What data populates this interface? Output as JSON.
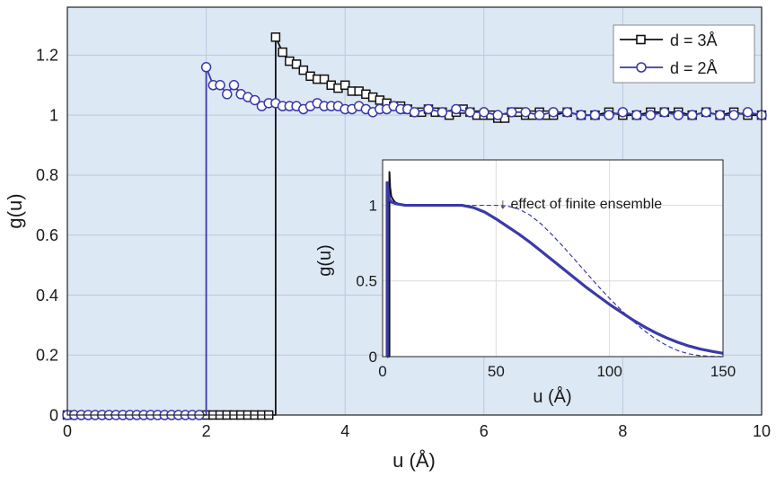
{
  "chart_data": [
    {
      "type": "line",
      "xlabel": "u (Å)",
      "ylabel": "g(u)",
      "xlim": [
        0,
        10
      ],
      "ylim": [
        0,
        1.36
      ],
      "xticks": [
        "0",
        "2",
        "4",
        "6",
        "8",
        "10"
      ],
      "yticks": [
        "0",
        "0.2",
        "0.4",
        "0.6",
        "0.8",
        "1",
        "1.2"
      ],
      "grid": true,
      "legend_position": "top-right",
      "background": "#dde8f5",
      "series": [
        {
          "name": "d = 3Å",
          "color": "#111111",
          "marker": "square",
          "x": [
            0.0,
            2.0,
            2.1,
            2.2,
            2.3,
            2.4,
            2.5,
            2.6,
            2.7,
            2.8,
            2.9,
            3.0,
            3.1,
            3.2,
            3.3,
            3.4,
            3.5,
            3.6,
            3.7,
            3.8,
            3.9,
            4.0,
            4.1,
            4.2,
            4.3,
            4.4,
            4.5,
            4.6,
            4.7,
            4.8,
            4.9,
            5.0,
            5.1,
            5.2,
            5.3,
            5.4,
            5.5,
            5.6,
            5.7,
            5.8,
            5.9,
            6.0,
            6.1,
            6.2,
            6.3,
            6.4,
            6.5,
            6.6,
            6.7,
            6.8,
            6.9,
            7.0,
            7.2,
            7.4,
            7.6,
            7.8,
            8.0,
            8.2,
            8.4,
            8.6,
            8.8,
            9.0,
            9.2,
            9.4,
            9.6,
            9.8,
            10.0
          ],
          "y": [
            0,
            0,
            0,
            0,
            0,
            0,
            0,
            0,
            0,
            0,
            0,
            1.26,
            1.21,
            1.18,
            1.17,
            1.15,
            1.13,
            1.12,
            1.12,
            1.1,
            1.09,
            1.1,
            1.08,
            1.08,
            1.07,
            1.06,
            1.05,
            1.04,
            1.03,
            1.03,
            1.02,
            1.01,
            1.01,
            1.02,
            1.01,
            1.01,
            1.0,
            1.01,
            1.02,
            1.01,
            1.0,
            1.0,
            1.0,
            0.99,
            0.99,
            1.01,
            1.01,
            1.0,
            1.0,
            1.01,
            1.0,
            1.0,
            1.01,
            1.0,
            1.0,
            1.01,
            1.0,
            1.0,
            1.01,
            1.01,
            1.01,
            1.0,
            1.01,
            1.0,
            1.01,
            1.0,
            1.0
          ]
        },
        {
          "name": "d = 2Å",
          "color": "#3a3aa8",
          "marker": "circle",
          "x": [
            0.0,
            0.1,
            0.2,
            0.3,
            0.4,
            0.5,
            0.6,
            0.7,
            0.8,
            0.9,
            1.0,
            1.1,
            1.2,
            1.3,
            1.4,
            1.5,
            1.6,
            1.7,
            1.8,
            1.9,
            2.0,
            2.1,
            2.2,
            2.3,
            2.4,
            2.5,
            2.6,
            2.7,
            2.8,
            2.9,
            3.0,
            3.1,
            3.2,
            3.3,
            3.4,
            3.5,
            3.6,
            3.7,
            3.8,
            3.9,
            4.0,
            4.1,
            4.2,
            4.3,
            4.4,
            4.5,
            4.6,
            4.7,
            4.8,
            4.9,
            5.0,
            5.2,
            5.4,
            5.6,
            5.8,
            6.0,
            6.2,
            6.4,
            6.6,
            6.8,
            7.0,
            7.2,
            7.4,
            7.6,
            7.8,
            8.0,
            8.2,
            8.4,
            8.6,
            8.8,
            9.0,
            9.2,
            9.4,
            9.6,
            9.8,
            10.0
          ],
          "y": [
            0,
            0,
            0,
            0,
            0,
            0,
            0,
            0,
            0,
            0,
            0,
            0,
            0,
            0,
            0,
            0,
            0,
            0,
            0,
            0,
            1.16,
            1.1,
            1.1,
            1.07,
            1.1,
            1.07,
            1.06,
            1.05,
            1.03,
            1.04,
            1.04,
            1.03,
            1.03,
            1.03,
            1.02,
            1.03,
            1.04,
            1.03,
            1.03,
            1.03,
            1.02,
            1.02,
            1.03,
            1.02,
            1.01,
            1.02,
            1.02,
            1.03,
            1.02,
            1.02,
            1.01,
            1.02,
            1.01,
            1.02,
            1.01,
            1.01,
            1.0,
            1.01,
            1.01,
            1.0,
            1.01,
            1.01,
            1.0,
            1.0,
            1.0,
            1.01,
            1.0,
            1.0,
            1.01,
            1.0,
            1.0,
            1.01,
            1.0,
            1.0,
            1.01,
            1.0
          ]
        }
      ]
    },
    {
      "type": "line",
      "xlabel": "u (Å)",
      "ylabel": "g(u)",
      "xlim": [
        0,
        150
      ],
      "ylim": [
        0,
        1.3
      ],
      "xticks": [
        "0",
        "50",
        "100",
        "150"
      ],
      "yticks": [
        "0",
        "0.5",
        "1"
      ],
      "grid": true,
      "background": "#ffffff",
      "annotation": "↓ effect of finite ensemble",
      "series": [
        {
          "color": "#111111",
          "style": "solid",
          "x": [
            2.9,
            3.0,
            3.3,
            3.8,
            4.5,
            5.5,
            7.0
          ],
          "y": [
            0,
            1.22,
            1.12,
            1.06,
            1.04,
            1.02,
            1.01
          ]
        },
        {
          "color": "#3a3aa8",
          "style": "solid",
          "x": [
            1.9,
            2.0,
            2.5,
            3.0,
            4.0,
            6.0,
            10,
            20,
            30,
            35,
            40,
            45,
            50,
            55,
            60,
            65,
            70,
            75,
            80,
            85,
            90,
            95,
            100,
            105,
            110,
            115,
            120,
            125,
            130,
            135,
            140,
            145,
            150
          ],
          "y": [
            0,
            1.15,
            1.08,
            1.04,
            1.02,
            1.01,
            1.0,
            1.0,
            1.0,
            1.0,
            0.985,
            0.955,
            0.91,
            0.86,
            0.81,
            0.755,
            0.695,
            0.635,
            0.575,
            0.515,
            0.455,
            0.4,
            0.345,
            0.295,
            0.245,
            0.2,
            0.16,
            0.125,
            0.095,
            0.07,
            0.05,
            0.035,
            0.022
          ]
        },
        {
          "color": "#3a3aa8",
          "style": "dashed",
          "x": [
            30,
            40,
            50,
            55,
            60,
            65,
            70,
            75,
            80,
            85,
            90,
            95,
            100,
            105,
            110,
            115,
            120,
            125,
            130,
            135,
            140,
            145,
            150
          ],
          "y": [
            1.0,
            1.0,
            1.0,
            0.995,
            0.975,
            0.935,
            0.875,
            0.8,
            0.72,
            0.635,
            0.55,
            0.465,
            0.385,
            0.31,
            0.24,
            0.175,
            0.12,
            0.075,
            0.04,
            0.018,
            0.006,
            0.002,
            0.0
          ]
        }
      ]
    }
  ]
}
